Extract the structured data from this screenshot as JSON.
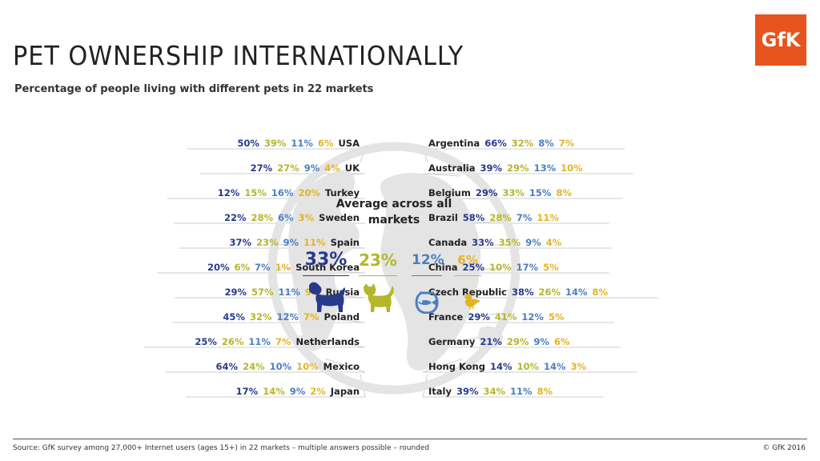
{
  "title": "PET OWNERSHIP INTERNATIONALLY",
  "subtitle": "Percentage of people living with different pets in 22 markets",
  "logo_text": "GfK",
  "average_title": "Average across all markets",
  "average": [
    {
      "pet": "dog",
      "label": "33%",
      "icon": "dog-icon"
    },
    {
      "pet": "cat",
      "label": "23%",
      "icon": "cat-icon"
    },
    {
      "pet": "fish",
      "label": "12%",
      "icon": "fish-bowl-icon"
    },
    {
      "pet": "bird",
      "label": "6%",
      "icon": "bird-icon"
    }
  ],
  "footer": {
    "source": "Source:  GfK survey among 27,000+ Internet users (ages 15+) in 22 markets  – multiple answers possible – rounded",
    "copyright": "© GfK 2016"
  },
  "colors": {
    "dog": "#283a8c",
    "cat": "#b5b62a",
    "fish": "#4a7fc1",
    "bird": "#e3b422",
    "logo": "#e8541d",
    "globe": "#e4e4e4",
    "connector": "#cfcfcf"
  },
  "chart_data": {
    "type": "table",
    "title": "PET OWNERSHIP INTERNATIONALLY",
    "subtitle": "Percentage of people living with different pets in 22 markets",
    "series": [
      "dog",
      "cat",
      "fish",
      "bird"
    ],
    "rows": [
      {
        "country": "USA",
        "side": "left",
        "values": [
          50,
          39,
          11,
          6
        ]
      },
      {
        "country": "UK",
        "side": "left",
        "values": [
          27,
          27,
          9,
          4
        ]
      },
      {
        "country": "Turkey",
        "side": "left",
        "values": [
          12,
          15,
          16,
          20
        ]
      },
      {
        "country": "Sweden",
        "side": "left",
        "values": [
          22,
          28,
          6,
          3
        ]
      },
      {
        "country": "Spain",
        "side": "left",
        "values": [
          37,
          23,
          9,
          11
        ]
      },
      {
        "country": "South Korea",
        "side": "left",
        "values": [
          20,
          6,
          7,
          1
        ]
      },
      {
        "country": "Russia",
        "side": "left",
        "values": [
          29,
          57,
          11,
          9
        ]
      },
      {
        "country": "Poland",
        "side": "left",
        "values": [
          45,
          32,
          12,
          7
        ]
      },
      {
        "country": "Netherlands",
        "side": "left",
        "values": [
          25,
          26,
          11,
          7
        ]
      },
      {
        "country": "Mexico",
        "side": "left",
        "values": [
          64,
          24,
          10,
          10
        ]
      },
      {
        "country": "Japan",
        "side": "left",
        "values": [
          17,
          14,
          9,
          2
        ]
      },
      {
        "country": "Argentina",
        "side": "right",
        "values": [
          66,
          32,
          8,
          7
        ]
      },
      {
        "country": "Australia",
        "side": "right",
        "values": [
          39,
          29,
          13,
          10
        ]
      },
      {
        "country": "Belgium",
        "side": "right",
        "values": [
          29,
          33,
          15,
          8
        ]
      },
      {
        "country": "Brazil",
        "side": "right",
        "values": [
          58,
          28,
          7,
          11
        ]
      },
      {
        "country": "Canada",
        "side": "right",
        "values": [
          33,
          35,
          9,
          4
        ]
      },
      {
        "country": "China",
        "side": "right",
        "values": [
          25,
          10,
          17,
          5
        ]
      },
      {
        "country": "Czech Republic",
        "side": "right",
        "values": [
          38,
          26,
          14,
          8
        ]
      },
      {
        "country": "France",
        "side": "right",
        "values": [
          29,
          41,
          12,
          5
        ]
      },
      {
        "country": "Germany",
        "side": "right",
        "values": [
          21,
          29,
          9,
          6
        ]
      },
      {
        "country": "Hong Kong",
        "side": "right",
        "values": [
          14,
          10,
          14,
          3
        ]
      },
      {
        "country": "Italy",
        "side": "right",
        "values": [
          39,
          34,
          11,
          8
        ]
      }
    ],
    "average_values": [
      33,
      23,
      12,
      6
    ]
  }
}
